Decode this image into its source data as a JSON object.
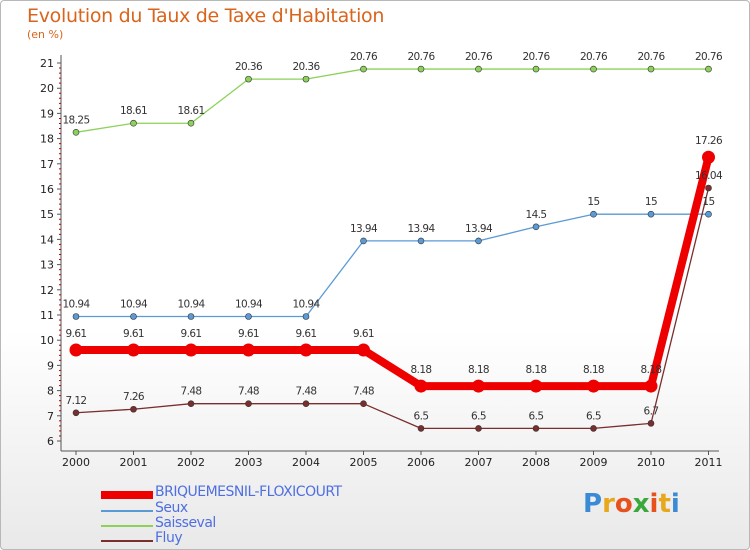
{
  "chart_data": {
    "type": "line",
    "title": "Evolution du Taux de Taxe d'Habitation",
    "unit": "(en %)",
    "xlabel": "",
    "ylabel": "",
    "ylim": [
      6,
      21
    ],
    "grid": false,
    "categories": [
      "2000",
      "2001",
      "2002",
      "2003",
      "2004",
      "2005",
      "2006",
      "2007",
      "2008",
      "2009",
      "2010",
      "2011"
    ],
    "y_ticks": [
      "6",
      "7",
      "8",
      "9",
      "10",
      "11",
      "12",
      "13",
      "14",
      "15",
      "16",
      "17",
      "18",
      "19",
      "20",
      "21"
    ],
    "series": [
      {
        "name": "BRIQUEMESNIL-FLOXICOURT",
        "color": "#ee0000",
        "values": [
          9.61,
          9.61,
          9.61,
          9.61,
          9.61,
          9.61,
          8.18,
          8.18,
          8.18,
          8.18,
          8.18,
          17.26
        ],
        "labels": [
          "9.61",
          "9.61",
          "9.61",
          "9.61",
          "9.61",
          "9.61",
          "8.18",
          "8.18",
          "8.18",
          "8.18",
          "8.18",
          "17.26"
        ]
      },
      {
        "name": "Seux",
        "color": "#5a9ad6",
        "values": [
          10.94,
          10.94,
          10.94,
          10.94,
          10.94,
          13.94,
          13.94,
          13.94,
          14.5,
          15,
          15,
          15
        ],
        "labels": [
          "10.94",
          "10.94",
          "10.94",
          "10.94",
          "10.94",
          "13.94",
          "13.94",
          "13.94",
          "14.5",
          "15",
          "15",
          "15"
        ]
      },
      {
        "name": "Saisseval",
        "color": "#8cd15a",
        "values": [
          18.25,
          18.61,
          18.61,
          20.36,
          20.36,
          20.76,
          20.76,
          20.76,
          20.76,
          20.76,
          20.76,
          20.76
        ],
        "labels": [
          "18.25",
          "18.61",
          "18.61",
          "20.36",
          "20.36",
          "20.76",
          "20.76",
          "20.76",
          "20.76",
          "20.76",
          "20.76",
          "20.76"
        ]
      },
      {
        "name": "Fluy",
        "color": "#7a2e2e",
        "values": [
          7.12,
          7.26,
          7.48,
          7.48,
          7.48,
          7.48,
          6.5,
          6.5,
          6.5,
          6.5,
          6.7,
          16.04
        ],
        "labels": [
          "7.12",
          "7.26",
          "7.48",
          "7.48",
          "7.48",
          "7.48",
          "6.5",
          "6.5",
          "6.5",
          "6.5",
          "6.7",
          "16.04"
        ]
      }
    ],
    "legend_position": "bottom-left"
  },
  "logo": {
    "letters": [
      "P",
      "r",
      "o",
      "x",
      "i",
      "t",
      "i"
    ],
    "colors": [
      "#3a8ad6",
      "#e8a81c",
      "#e8501c",
      "#3aa83a",
      "#e8501c",
      "#e8a81c",
      "#3a8ad6"
    ]
  }
}
